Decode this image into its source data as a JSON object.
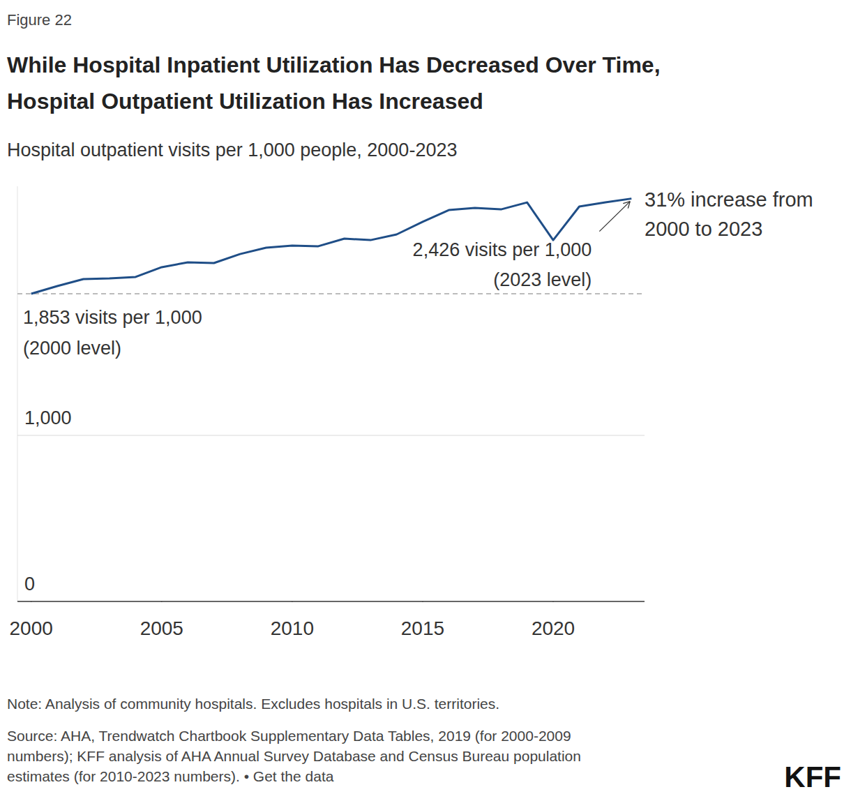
{
  "chart_data": {
    "type": "line",
    "figure_label": "Figure 22",
    "title": [
      "While Hospital Inpatient Utilization Has Decreased Over Time,",
      "Hospital Outpatient Utilization Has Increased"
    ],
    "subtitle": "Hospital outpatient visits per 1,000 people, 2000-2023",
    "x": [
      2000,
      2001,
      2002,
      2003,
      2004,
      2005,
      2006,
      2007,
      2008,
      2009,
      2010,
      2011,
      2012,
      2013,
      2014,
      2015,
      2016,
      2017,
      2018,
      2019,
      2020,
      2021,
      2022,
      2023
    ],
    "values": [
      1853,
      1899,
      1941,
      1945,
      1954,
      2013,
      2042,
      2038,
      2092,
      2130,
      2143,
      2139,
      2185,
      2176,
      2210,
      2286,
      2357,
      2370,
      2361,
      2403,
      2176,
      2378,
      2403,
      2426
    ],
    "color": "#1f4e87",
    "xlim": [
      1999.5,
      2023.5
    ],
    "ylim": [
      0,
      2500
    ],
    "xticks": [
      2000,
      2005,
      2010,
      2015,
      2020
    ],
    "yticks": [
      0,
      {
        "value": 1000,
        "label": "1,000"
      }
    ],
    "grid": true,
    "reference_value": 1853,
    "annotations": [
      {
        "lines": [
          "1,853 visits per 1,000",
          "(2000 level)"
        ]
      },
      {
        "lines": [
          "2,426 visits per 1,000",
          "(2023 level)"
        ]
      },
      {
        "lines": [
          "31% increase from",
          "2000 to 2023"
        ]
      }
    ],
    "note": "Note: Analysis of community hospitals. Excludes hospitals in U.S. territories.",
    "source": [
      "Source: AHA, Trendwatch Chartbook Supplementary Data Tables, 2019 (for 2000-2009",
      "numbers); KFF analysis of AHA Annual Survey Database and Census Bureau population",
      "estimates (for 2010-2023 numbers). • Get the data"
    ],
    "logo": "KFF"
  }
}
